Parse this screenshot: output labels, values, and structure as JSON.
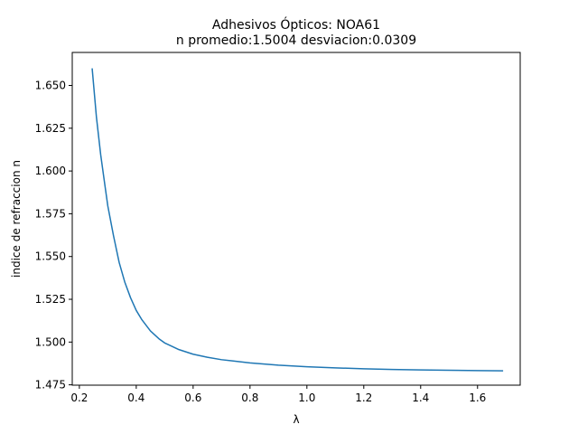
{
  "chart_data": {
    "type": "line",
    "title": "Adhesivos Ópticos: NOA61",
    "subtitle": "n promedio:1.5004 desviacion:0.0309",
    "xlabel": "λ",
    "ylabel": "indice de refraccion n",
    "xlim": [
      0.175,
      1.75
    ],
    "ylim": [
      1.4748,
      1.6693
    ],
    "xticks": [
      {
        "value": 0.2,
        "label": "0.2"
      },
      {
        "value": 0.4,
        "label": "0.4"
      },
      {
        "value": 0.6,
        "label": "0.6"
      },
      {
        "value": 0.8,
        "label": "0.8"
      },
      {
        "value": 1.0,
        "label": "1.0"
      },
      {
        "value": 1.2,
        "label": "1.2"
      },
      {
        "value": 1.4,
        "label": "1.4"
      },
      {
        "value": 1.6,
        "label": "1.6"
      }
    ],
    "yticks": [
      {
        "value": 1.475,
        "label": "1.475"
      },
      {
        "value": 1.5,
        "label": "1.500"
      },
      {
        "value": 1.525,
        "label": "1.525"
      },
      {
        "value": 1.55,
        "label": "1.550"
      },
      {
        "value": 1.575,
        "label": "1.575"
      },
      {
        "value": 1.6,
        "label": "1.600"
      },
      {
        "value": 1.625,
        "label": "1.625"
      },
      {
        "value": 1.65,
        "label": "1.650"
      }
    ],
    "grid": false,
    "legend": "none",
    "series": [
      {
        "color": "#1f77b4",
        "x": [
          0.245,
          0.26,
          0.275,
          0.29,
          0.3,
          0.32,
          0.34,
          0.36,
          0.38,
          0.4,
          0.42,
          0.45,
          0.48,
          0.5,
          0.55,
          0.6,
          0.65,
          0.7,
          0.8,
          0.9,
          1.0,
          1.1,
          1.2,
          1.3,
          1.4,
          1.5,
          1.6,
          1.69
        ],
        "y": [
          1.66,
          1.6315,
          1.6095,
          1.5914,
          1.5796,
          1.5622,
          1.5465,
          1.5349,
          1.5259,
          1.5185,
          1.513,
          1.5065,
          1.5019,
          1.4995,
          1.4956,
          1.4929,
          1.4911,
          1.4897,
          1.4878,
          1.4865,
          1.4856,
          1.4849,
          1.4844,
          1.484,
          1.4837,
          1.4835,
          1.4833,
          1.4832
        ]
      }
    ]
  }
}
